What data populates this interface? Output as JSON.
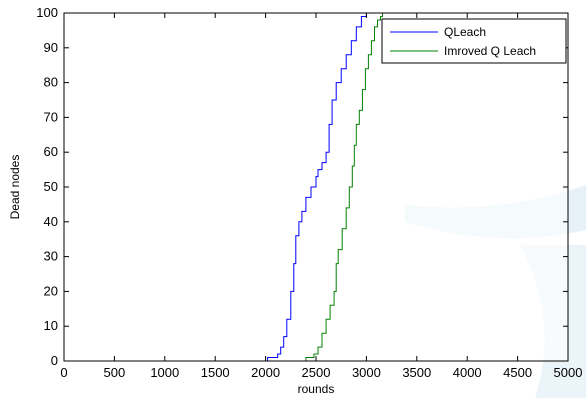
{
  "chart_data": {
    "type": "line",
    "xlabel": "rounds",
    "ylabel": "Dead nodes",
    "xlim": [
      0,
      5000
    ],
    "ylim": [
      0,
      100
    ],
    "xticks": [
      0,
      500,
      1000,
      1500,
      2000,
      2500,
      3000,
      3500,
      4000,
      4500,
      5000
    ],
    "yticks": [
      0,
      10,
      20,
      30,
      40,
      50,
      60,
      70,
      80,
      90,
      100
    ],
    "grid": false,
    "legend_position": "top-right",
    "series": [
      {
        "name": "QLeach",
        "color": "#0000ff",
        "x": [
          0,
          2000,
          2020,
          2080,
          2120,
          2150,
          2180,
          2210,
          2250,
          2280,
          2300,
          2330,
          2360,
          2400,
          2450,
          2500,
          2520,
          2560,
          2600,
          2630,
          2660,
          2700,
          2750,
          2800,
          2850,
          2900,
          2950,
          3000,
          3050,
          5000
        ],
        "y": [
          0,
          0,
          1,
          1,
          2,
          4,
          7,
          12,
          20,
          28,
          36,
          40,
          43,
          47,
          50,
          53,
          55,
          57,
          60,
          68,
          75,
          80,
          84,
          88,
          92,
          96,
          99,
          100,
          100,
          100
        ]
      },
      {
        "name": "Imroved Q Leach",
        "color": "#008000",
        "x": [
          0,
          2380,
          2400,
          2450,
          2480,
          2520,
          2560,
          2600,
          2640,
          2680,
          2700,
          2720,
          2760,
          2800,
          2830,
          2860,
          2880,
          2900,
          2930,
          2960,
          2990,
          3020,
          3050,
          3080,
          3110,
          3140,
          3160,
          5000
        ],
        "y": [
          0,
          0,
          1,
          1,
          2,
          4,
          8,
          12,
          16,
          20,
          28,
          32,
          38,
          44,
          50,
          56,
          62,
          68,
          72,
          78,
          84,
          88,
          92,
          96,
          98,
          99,
          100,
          100
        ]
      }
    ]
  }
}
